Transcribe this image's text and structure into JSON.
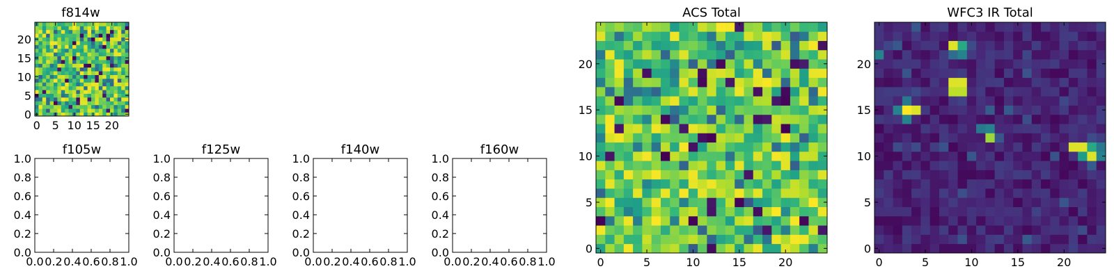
{
  "colors": {
    "axis": "#000000",
    "background": "#ffffff",
    "viridis_low": "#440154",
    "viridis_mid": "#21918c",
    "viridis_high": "#fde725"
  },
  "chart_data": [
    {
      "type": "heatmap",
      "title": "f814w",
      "grid_size": 25,
      "colormap": "viridis",
      "value_range": [
        0,
        1
      ],
      "pattern": "noisy-bright",
      "xlim": [
        -0.5,
        24.5
      ],
      "ylim": [
        -0.5,
        24.5
      ],
      "xticks": [
        0,
        5,
        10,
        15,
        20
      ],
      "yticks": [
        0,
        5,
        10,
        15,
        20
      ],
      "xtick_labels": [
        "0",
        "5",
        "10",
        "15",
        "20"
      ],
      "ytick_labels": [
        "0",
        "5",
        "10",
        "15",
        "20"
      ]
    },
    {
      "type": "heatmap",
      "title": "f105w",
      "empty": true,
      "xlim": [
        0,
        1
      ],
      "ylim": [
        0,
        1
      ],
      "xtick_labels": [
        "0.0",
        "0.2",
        "0.4",
        "0.6",
        "0.8",
        "1.0"
      ],
      "ytick_labels": [
        "0.0",
        "0.2",
        "0.4",
        "0.6",
        "0.8",
        "1.0"
      ]
    },
    {
      "type": "heatmap",
      "title": "f125w",
      "empty": true,
      "xlim": [
        0,
        1
      ],
      "ylim": [
        0,
        1
      ],
      "xtick_labels": [
        "0.0",
        "0.2",
        "0.4",
        "0.6",
        "0.8",
        "1.0"
      ],
      "ytick_labels": [
        "0.0",
        "0.2",
        "0.4",
        "0.6",
        "0.8",
        "1.0"
      ]
    },
    {
      "type": "heatmap",
      "title": "f140w",
      "empty": true,
      "xlim": [
        0,
        1
      ],
      "ylim": [
        0,
        1
      ],
      "xtick_labels": [
        "0.0",
        "0.2",
        "0.4",
        "0.6",
        "0.8",
        "1.0"
      ],
      "ytick_labels": [
        "0.0",
        "0.2",
        "0.4",
        "0.6",
        "0.8",
        "1.0"
      ]
    },
    {
      "type": "heatmap",
      "title": "f160w",
      "empty": true,
      "xlim": [
        0,
        1
      ],
      "ylim": [
        0,
        1
      ],
      "xtick_labels": [
        "0.0",
        "0.2",
        "0.4",
        "0.6",
        "0.8",
        "1.0"
      ],
      "ytick_labels": [
        "0.0",
        "0.2",
        "0.4",
        "0.6",
        "0.8",
        "1.0"
      ]
    },
    {
      "type": "heatmap",
      "title": "ACS Total",
      "grid_size": 25,
      "colormap": "viridis",
      "value_range": [
        0,
        1
      ],
      "pattern": "noisy-bright",
      "xlim": [
        -0.5,
        24.5
      ],
      "ylim": [
        -0.5,
        24.5
      ],
      "xticks": [
        0,
        5,
        10,
        15,
        20
      ],
      "yticks": [
        0,
        5,
        10,
        15,
        20
      ],
      "xtick_labels": [
        "0",
        "5",
        "10",
        "15",
        "20"
      ],
      "ytick_labels": [
        "0",
        "5",
        "10",
        "15",
        "20"
      ]
    },
    {
      "type": "heatmap",
      "title": "WFC3 IR Total",
      "grid_size": 25,
      "colormap": "viridis",
      "value_range": [
        0,
        1
      ],
      "pattern": "dark-with-sources",
      "bright_spots": [
        {
          "x": 8,
          "y": 22,
          "value": 0.95
        },
        {
          "x": 9,
          "y": 22,
          "value": 0.6
        },
        {
          "x": 9,
          "y": 21,
          "value": 0.45
        },
        {
          "x": 8,
          "y": 21,
          "value": 0.35
        },
        {
          "x": 0,
          "y": 21,
          "value": 0.45
        },
        {
          "x": 8,
          "y": 18,
          "value": 0.95
        },
        {
          "x": 9,
          "y": 18,
          "value": 0.95
        },
        {
          "x": 8,
          "y": 17,
          "value": 0.9
        },
        {
          "x": 9,
          "y": 17,
          "value": 0.9
        },
        {
          "x": 2,
          "y": 15,
          "value": 0.45
        },
        {
          "x": 3,
          "y": 15,
          "value": 1.0
        },
        {
          "x": 4,
          "y": 15,
          "value": 0.95
        },
        {
          "x": 3,
          "y": 14,
          "value": 0.45
        },
        {
          "x": 3,
          "y": 16,
          "value": 0.4
        },
        {
          "x": 11,
          "y": 13,
          "value": 0.4
        },
        {
          "x": 12,
          "y": 13,
          "value": 0.45
        },
        {
          "x": 12,
          "y": 12,
          "value": 0.85
        },
        {
          "x": 21,
          "y": 11,
          "value": 0.95
        },
        {
          "x": 22,
          "y": 11,
          "value": 0.95
        },
        {
          "x": 23,
          "y": 11,
          "value": 0.6
        },
        {
          "x": 22,
          "y": 10,
          "value": 0.55
        },
        {
          "x": 23,
          "y": 10,
          "value": 0.95
        },
        {
          "x": 24,
          "y": 10,
          "value": 0.45
        },
        {
          "x": 24,
          "y": 11,
          "value": 0.4
        }
      ],
      "xlim": [
        -0.5,
        24.5
      ],
      "ylim": [
        -0.5,
        24.5
      ],
      "xticks": [
        0,
        5,
        10,
        15,
        20
      ],
      "yticks": [
        0,
        5,
        10,
        15,
        20
      ],
      "xtick_labels": [
        "0",
        "5",
        "10",
        "15",
        "20"
      ],
      "ytick_labels": [
        "0",
        "5",
        "10",
        "15",
        "20"
      ]
    }
  ]
}
